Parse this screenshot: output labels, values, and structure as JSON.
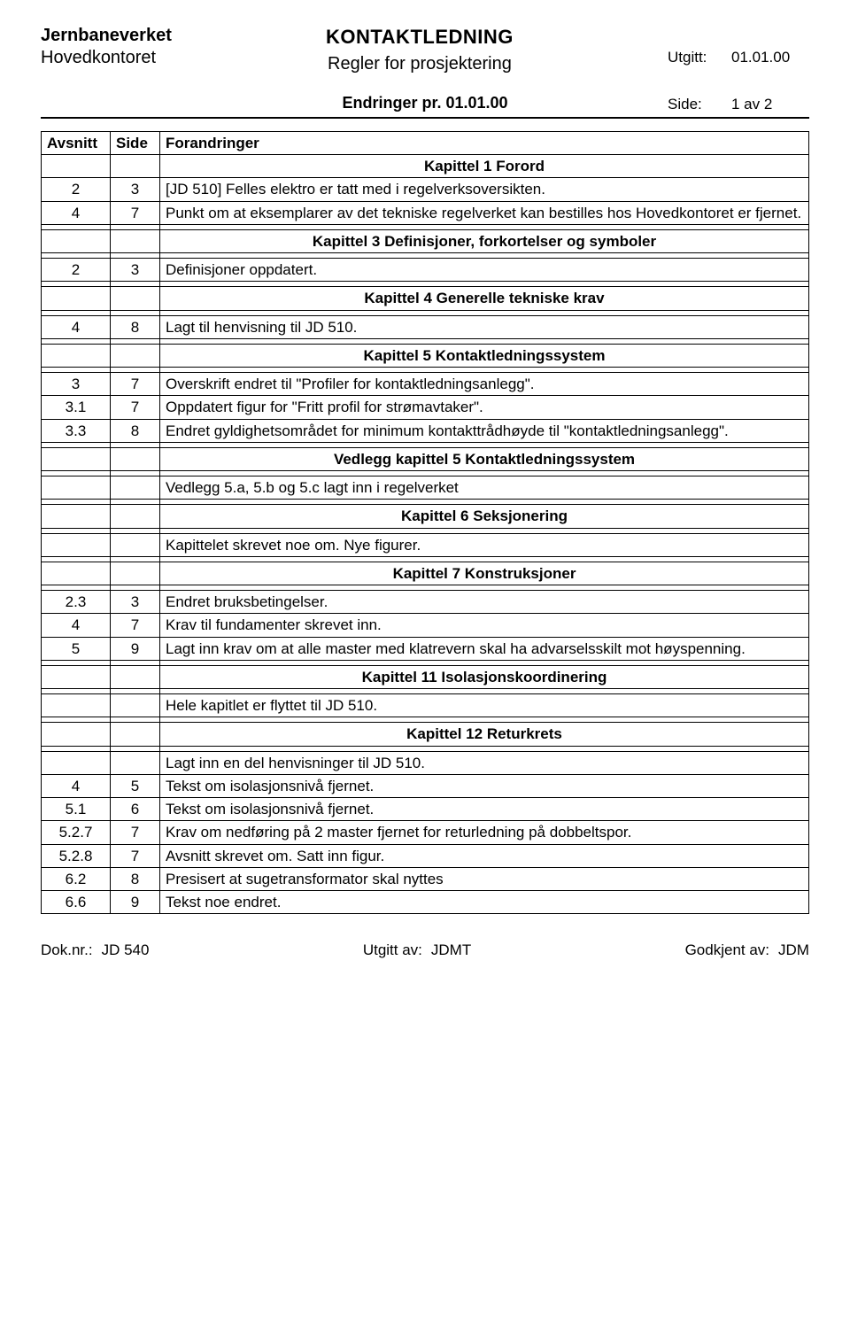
{
  "header": {
    "org": "Jernbaneverket",
    "office": "Hovedkontoret",
    "doc_title": "KONTAKTLEDNING",
    "doc_subtitle": "Regler for prosjektering",
    "utgitt_label": "Utgitt:",
    "utgitt_value": "01.01.00",
    "changes_title": "Endringer pr. 01.01.00",
    "side_label": "Side:",
    "side_value": "1 av 2"
  },
  "columns": {
    "avsnitt": "Avsnitt",
    "side": "Side",
    "forandringer": "Forandringer"
  },
  "rows": [
    {
      "type": "chapter",
      "text": "Kapittel 1 Forord"
    },
    {
      "type": "data",
      "avsnitt": "2",
      "side": "3",
      "text": "[JD 510] Felles elektro er tatt med i regelverksoversikten."
    },
    {
      "type": "data",
      "avsnitt": "4",
      "side": "7",
      "text": "Punkt om at eksemplarer av det tekniske regelverket kan bestilles hos Hovedkontoret er fjernet."
    },
    {
      "type": "spacer"
    },
    {
      "type": "chapter",
      "text": "Kapittel 3 Definisjoner, forkortelser og symboler"
    },
    {
      "type": "spacer"
    },
    {
      "type": "data",
      "avsnitt": "2",
      "side": "3",
      "text": "Definisjoner oppdatert."
    },
    {
      "type": "spacer"
    },
    {
      "type": "chapter",
      "text": "Kapittel 4 Generelle tekniske krav"
    },
    {
      "type": "spacer"
    },
    {
      "type": "data",
      "avsnitt": "4",
      "side": "8",
      "text": "Lagt til henvisning til JD 510."
    },
    {
      "type": "spacer"
    },
    {
      "type": "chapter",
      "text": "Kapittel 5 Kontaktledningssystem"
    },
    {
      "type": "spacer"
    },
    {
      "type": "data",
      "avsnitt": "3",
      "side": "7",
      "text": "Overskrift endret til \"Profiler for kontaktledningsanlegg\"."
    },
    {
      "type": "data",
      "avsnitt": "3.1",
      "side": "7",
      "text": "Oppdatert figur for \"Fritt profil for strømavtaker\"."
    },
    {
      "type": "data",
      "avsnitt": "3.3",
      "side": "8",
      "text": "Endret gyldighetsområdet for minimum kontakttrådhøyde til \"kontaktledningsanlegg\"."
    },
    {
      "type": "spacer"
    },
    {
      "type": "chapter",
      "text": "Vedlegg kapittel 5 Kontaktledningssystem"
    },
    {
      "type": "spacer"
    },
    {
      "type": "data",
      "avsnitt": "",
      "side": "",
      "text": "Vedlegg 5.a, 5.b og 5.c lagt inn i regelverket"
    },
    {
      "type": "spacer"
    },
    {
      "type": "chapter",
      "text": "Kapittel 6 Seksjonering"
    },
    {
      "type": "spacer"
    },
    {
      "type": "data",
      "avsnitt": "",
      "side": "",
      "text": "Kapittelet skrevet noe om. Nye figurer."
    },
    {
      "type": "spacer"
    },
    {
      "type": "chapter",
      "text": "Kapittel 7 Konstruksjoner"
    },
    {
      "type": "spacer"
    },
    {
      "type": "data",
      "avsnitt": "2.3",
      "side": "3",
      "text": "Endret bruksbetingelser."
    },
    {
      "type": "data",
      "avsnitt": "4",
      "side": "7",
      "text": "Krav til fundamenter skrevet inn."
    },
    {
      "type": "data",
      "avsnitt": "5",
      "side": "9",
      "text": "Lagt inn krav om at alle master med klatrevern skal ha advarselsskilt mot høyspenning."
    },
    {
      "type": "spacer"
    },
    {
      "type": "chapter",
      "text": "Kapittel 11 Isolasjonskoordinering"
    },
    {
      "type": "spacer"
    },
    {
      "type": "data",
      "avsnitt": "",
      "side": "",
      "text": "Hele kapitlet er flyttet til JD 510."
    },
    {
      "type": "spacer"
    },
    {
      "type": "chapter",
      "text": "Kapittel 12 Returkrets"
    },
    {
      "type": "spacer"
    },
    {
      "type": "data",
      "avsnitt": "",
      "side": "",
      "text": "Lagt inn en del henvisninger til JD 510."
    },
    {
      "type": "data",
      "avsnitt": "4",
      "side": "5",
      "text": "Tekst om isolasjonsnivå fjernet."
    },
    {
      "type": "data",
      "avsnitt": "5.1",
      "side": "6",
      "text": "Tekst om isolasjonsnivå fjernet."
    },
    {
      "type": "data",
      "avsnitt": "5.2.7",
      "side": "7",
      "text": "Krav om nedføring på 2 master fjernet for returledning på dobbeltspor."
    },
    {
      "type": "data",
      "avsnitt": "5.2.8",
      "side": "7",
      "text": "Avsnitt skrevet om. Satt inn figur."
    },
    {
      "type": "data",
      "avsnitt": "6.2",
      "side": "8",
      "text": "Presisert at sugetransformator skal nyttes"
    },
    {
      "type": "data",
      "avsnitt": "6.6",
      "side": "9",
      "text": "Tekst noe endret."
    }
  ],
  "footer": {
    "doknr_label": "Dok.nr.:",
    "doknr_value": "JD 540",
    "utgitt_av_label": "Utgitt av:",
    "utgitt_av_value": "JDMT",
    "godkjent_av_label": "Godkjent av:",
    "godkjent_av_value": "JDM"
  }
}
